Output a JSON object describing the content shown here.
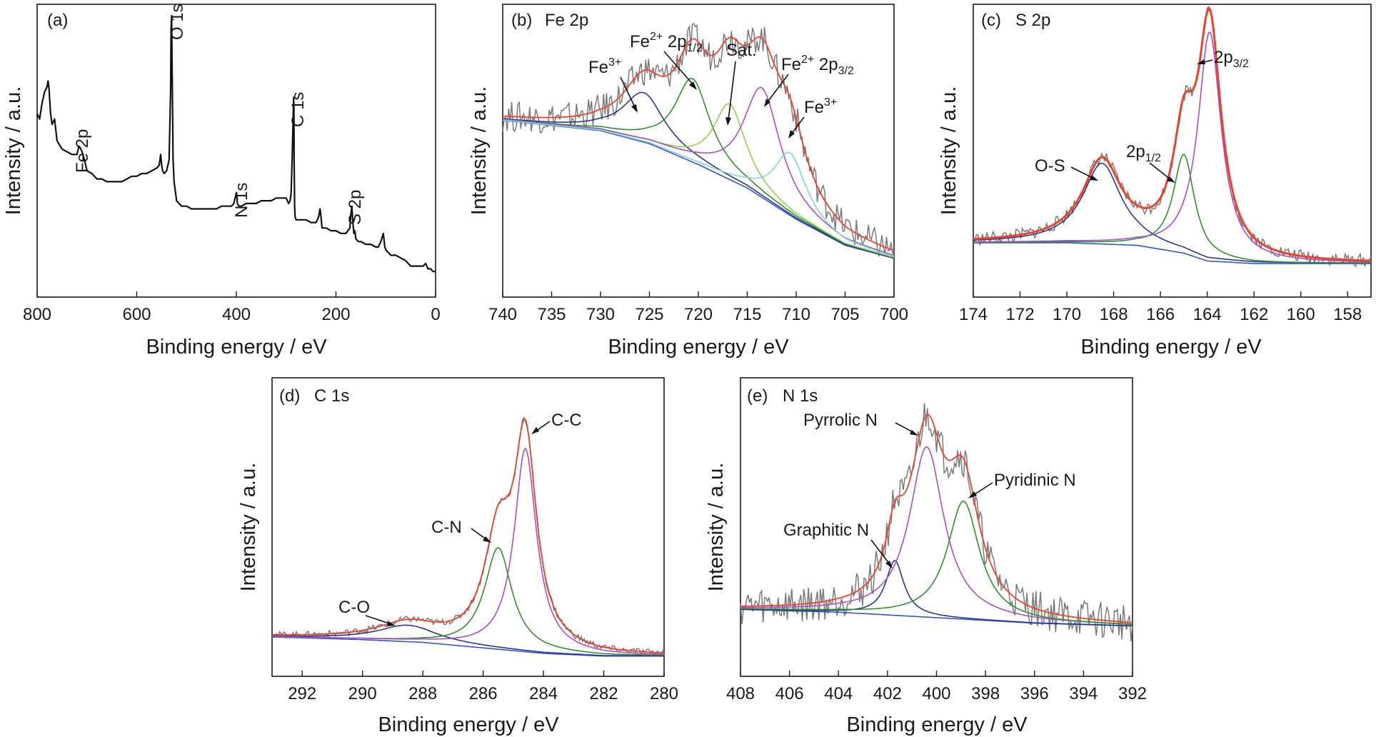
{
  "colors": {
    "frame": "#1a1a1a",
    "raw": "#7a7a7a",
    "envelope": "#e8452c",
    "navy": "#2a3590",
    "blue": "#3355cc",
    "green": "#2f8f2a",
    "lightgreen": "#8fd14f",
    "purple": "#a64fc7",
    "cyan": "#7fd6d2"
  },
  "chart_data": [
    {
      "id": "a",
      "type": "line",
      "panel_label": "(a)",
      "title": "",
      "xlabel": "Binding energy / eV",
      "ylabel": "Intensity / a.u.",
      "xlim": [
        800,
        0
      ],
      "xticks": [
        "800",
        "600",
        "400",
        "200",
        "0"
      ],
      "ylim": [
        0,
        1
      ],
      "series": [
        {
          "role": "survey",
          "x": [
            800,
            795,
            790,
            785,
            780,
            778,
            776,
            773,
            770,
            765,
            760,
            750,
            740,
            730,
            720,
            716,
            712,
            708,
            705,
            700,
            690,
            680,
            670,
            660,
            650,
            640,
            630,
            620,
            610,
            600,
            590,
            580,
            570,
            560,
            555,
            552,
            550,
            548,
            545,
            540,
            535,
            532,
            531,
            530,
            529,
            527,
            525,
            520,
            510,
            500,
            490,
            480,
            470,
            460,
            450,
            440,
            430,
            420,
            410,
            405,
            400,
            399,
            398,
            395,
            390,
            380,
            370,
            360,
            350,
            340,
            330,
            320,
            310,
            300,
            295,
            292,
            290,
            288,
            286,
            285,
            284.5,
            284,
            283,
            282,
            280,
            275,
            270,
            260,
            250,
            240,
            235,
            232,
            230,
            228,
            225,
            220,
            210,
            200,
            190,
            180,
            172,
            170,
            168,
            166,
            164,
            162,
            160,
            155,
            150,
            140,
            130,
            120,
            115,
            110,
            105,
            102,
            100,
            95,
            90,
            80,
            70,
            60,
            50,
            40,
            30,
            25,
            20,
            15,
            10,
            5,
            0
          ],
          "y": [
            0.62,
            0.6,
            0.66,
            0.7,
            0.72,
            0.74,
            0.71,
            0.62,
            0.58,
            0.6,
            0.52,
            0.49,
            0.48,
            0.47,
            0.47,
            0.5,
            0.49,
            0.47,
            0.45,
            0.41,
            0.4,
            0.38,
            0.38,
            0.37,
            0.37,
            0.37,
            0.37,
            0.38,
            0.39,
            0.39,
            0.4,
            0.4,
            0.41,
            0.42,
            0.43,
            0.47,
            0.43,
            0.41,
            0.4,
            0.41,
            0.45,
            0.7,
            0.93,
            0.98,
            0.8,
            0.45,
            0.37,
            0.3,
            0.28,
            0.28,
            0.27,
            0.27,
            0.27,
            0.27,
            0.27,
            0.27,
            0.28,
            0.28,
            0.28,
            0.29,
            0.33,
            0.32,
            0.29,
            0.28,
            0.28,
            0.29,
            0.29,
            0.29,
            0.3,
            0.3,
            0.3,
            0.31,
            0.31,
            0.31,
            0.29,
            0.3,
            0.33,
            0.45,
            0.6,
            0.68,
            0.65,
            0.45,
            0.28,
            0.24,
            0.23,
            0.23,
            0.23,
            0.23,
            0.22,
            0.22,
            0.24,
            0.27,
            0.24,
            0.2,
            0.2,
            0.2,
            0.19,
            0.19,
            0.18,
            0.18,
            0.2,
            0.25,
            0.28,
            0.22,
            0.18,
            0.19,
            0.16,
            0.15,
            0.15,
            0.14,
            0.14,
            0.13,
            0.13,
            0.15,
            0.18,
            0.13,
            0.12,
            0.11,
            0.1,
            0.1,
            0.09,
            0.08,
            0.06,
            0.06,
            0.06,
            0.06,
            0.07,
            0.05,
            0.05,
            0.04,
            0.04
          ]
        }
      ],
      "annotations": [
        "O 1s",
        "C 1s",
        "Fe 2p",
        "N 1s",
        "S 2p"
      ]
    },
    {
      "id": "b",
      "type": "line",
      "panel_label": "(b)",
      "title": "Fe 2p",
      "xlabel": "Binding energy / eV",
      "ylabel": "Intensity / a.u.",
      "xlim": [
        740,
        700
      ],
      "xticks": [
        "740",
        "735",
        "730",
        "725",
        "720",
        "715",
        "710",
        "705",
        "700"
      ],
      "ylim": [
        0,
        1
      ],
      "baseline": {
        "x": [
          740,
          730,
          725,
          720,
          715,
          710,
          705,
          700
        ],
        "y": [
          0.6,
          0.56,
          0.51,
          0.43,
          0.34,
          0.22,
          0.12,
          0.07
        ]
      },
      "components": [
        {
          "label": "Fe3+",
          "center": 725.6,
          "height": 0.19,
          "width": 2.6,
          "color": "navy"
        },
        {
          "label": "Fe2+ 2p1/2",
          "center": 720.6,
          "height": 0.32,
          "width": 2.2,
          "color": "green"
        },
        {
          "label": "Sat.",
          "center": 716.8,
          "height": 0.29,
          "width": 2.0,
          "color": "lightgreen"
        },
        {
          "label": "Fe2+ 2p3/2",
          "center": 713.5,
          "height": 0.42,
          "width": 2.3,
          "color": "purple"
        },
        {
          "label": "Fe3+",
          "center": 710.6,
          "height": 0.24,
          "width": 2.0,
          "color": "cyan"
        }
      ],
      "noise_amplitude": 0.06,
      "annotations": [
        "Fe3+",
        "Fe2+ 2p1/2",
        "Sat.",
        "Fe2+ 2p3/2",
        "Fe3+"
      ]
    },
    {
      "id": "c",
      "type": "line",
      "panel_label": "(c)",
      "title": "S 2p",
      "xlabel": "Binding energy / eV",
      "ylabel": "Intensity / a.u.",
      "xlim": [
        174,
        157
      ],
      "xticks": [
        "174",
        "172",
        "170",
        "168",
        "166",
        "164",
        "162",
        "160",
        "158"
      ],
      "ylim": [
        0,
        1
      ],
      "baseline": {
        "x": [
          174,
          170,
          167,
          165,
          164,
          162,
          160,
          157
        ],
        "y": [
          0.13,
          0.13,
          0.12,
          0.09,
          0.06,
          0.05,
          0.05,
          0.05
        ]
      },
      "components": [
        {
          "label": "O-S",
          "center": 168.5,
          "height": 0.31,
          "width": 1.0,
          "color": "navy"
        },
        {
          "label": "2p1/2",
          "center": 165.0,
          "height": 0.38,
          "width": 0.55,
          "color": "green"
        },
        {
          "label": "2p3/2",
          "center": 163.9,
          "height": 0.88,
          "width": 0.6,
          "color": "purple"
        }
      ],
      "noise_amplitude": 0.025,
      "annotations": [
        "O-S",
        "2p1/2",
        "2p3/2"
      ]
    },
    {
      "id": "d",
      "type": "line",
      "panel_label": "(d)",
      "title": "C 1s",
      "xlabel": "Binding energy / eV",
      "ylabel": "Intensity / a.u.",
      "xlim": [
        293,
        280
      ],
      "xticks": [
        "292",
        "290",
        "288",
        "286",
        "284",
        "282",
        "280"
      ],
      "ylim": [
        0,
        1
      ],
      "baseline": {
        "x": [
          293,
          290,
          288,
          286,
          285,
          284,
          282,
          280
        ],
        "y": [
          0.1,
          0.09,
          0.08,
          0.06,
          0.05,
          0.04,
          0.03,
          0.03
        ]
      },
      "components": [
        {
          "label": "C-O",
          "center": 288.5,
          "height": 0.06,
          "width": 1.2,
          "color": "navy"
        },
        {
          "label": "C-N",
          "center": 285.5,
          "height": 0.37,
          "width": 0.55,
          "color": "green"
        },
        {
          "label": "C-C",
          "center": 284.6,
          "height": 0.74,
          "width": 0.45,
          "color": "purple"
        }
      ],
      "noise_amplitude": 0.012,
      "annotations": [
        "C-O",
        "C-N",
        "C-C"
      ]
    },
    {
      "id": "e",
      "type": "line",
      "panel_label": "(e)",
      "title": "N 1s",
      "xlabel": "Binding energy / eV",
      "ylabel": "Intensity / a.u.",
      "xlim": [
        408,
        392
      ],
      "xticks": [
        "408",
        "406",
        "404",
        "402",
        "400",
        "398",
        "396",
        "394",
        "392"
      ],
      "ylim": [
        0,
        1
      ],
      "baseline": {
        "x": [
          408,
          404,
          400,
          396,
          392
        ],
        "y": [
          0.2,
          0.19,
          0.17,
          0.15,
          0.14
        ]
      },
      "components": [
        {
          "label": "Graphitic N",
          "center": 401.7,
          "height": 0.2,
          "width": 0.45,
          "color": "navy"
        },
        {
          "label": "Pyrrolic N",
          "center": 400.4,
          "height": 0.62,
          "width": 0.85,
          "color": "purple"
        },
        {
          "label": "Pyridinic N",
          "center": 398.9,
          "height": 0.43,
          "width": 0.8,
          "color": "green"
        }
      ],
      "noise_amplitude": 0.07,
      "annotations": [
        "Graphitic N",
        "Pyrrolic N",
        "Pyridinic N"
      ]
    }
  ]
}
